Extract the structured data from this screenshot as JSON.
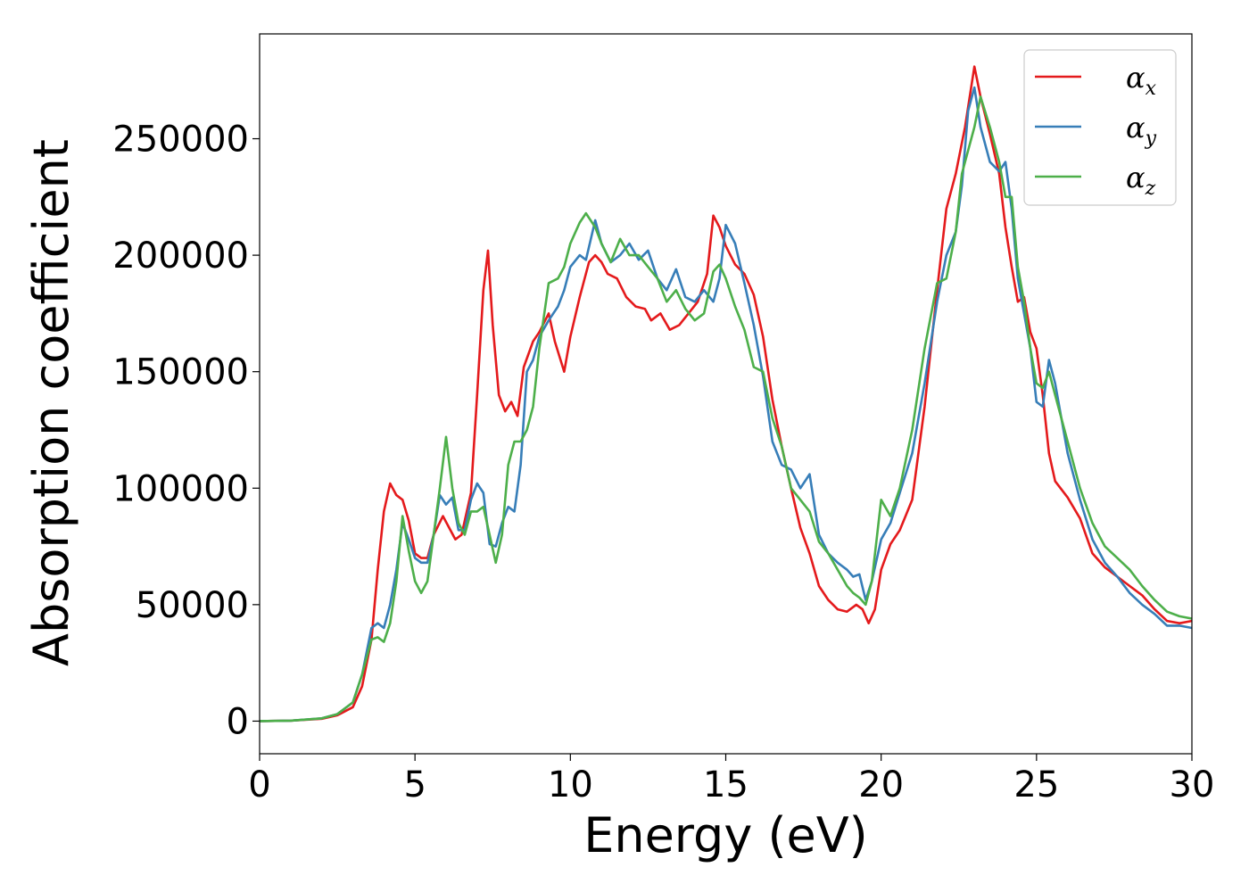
{
  "chart_data": {
    "type": "line",
    "title": "",
    "xlabel": "Energy (eV)",
    "ylabel": "Absorption coefficient",
    "xlim": [
      0,
      30
    ],
    "ylim": [
      -14000,
      295000
    ],
    "xticks": [
      0,
      5,
      10,
      15,
      20,
      25,
      30
    ],
    "yticks": [
      0,
      50000,
      100000,
      150000,
      200000,
      250000
    ],
    "grid": false,
    "legend_position": "top-right",
    "series": [
      {
        "name": "αx",
        "symbol": "α",
        "subscript": "x",
        "color": "#e41a1c",
        "x": [
          0,
          1,
          2,
          2.5,
          3,
          3.3,
          3.6,
          3.8,
          4,
          4.2,
          4.4,
          4.6,
          4.8,
          5,
          5.2,
          5.4,
          5.6,
          5.9,
          6.1,
          6.3,
          6.5,
          6.8,
          7,
          7.2,
          7.35,
          7.5,
          7.7,
          7.9,
          8.1,
          8.3,
          8.5,
          8.8,
          9,
          9.3,
          9.5,
          9.8,
          10,
          10.3,
          10.6,
          10.8,
          11,
          11.2,
          11.5,
          11.8,
          12.1,
          12.4,
          12.6,
          12.9,
          13.2,
          13.5,
          13.8,
          14.1,
          14.4,
          14.6,
          14.8,
          15,
          15.3,
          15.6,
          15.9,
          16.2,
          16.5,
          16.8,
          17.1,
          17.4,
          17.7,
          18,
          18.3,
          18.6,
          18.9,
          19.2,
          19.4,
          19.6,
          19.8,
          20,
          20.3,
          20.6,
          21,
          21.4,
          21.8,
          22.1,
          22.4,
          22.7,
          23,
          23.2,
          23.5,
          23.8,
          24,
          24.2,
          24.4,
          24.6,
          24.8,
          25,
          25.2,
          25.4,
          25.6,
          26,
          26.4,
          26.8,
          27.2,
          27.6,
          28,
          28.4,
          28.8,
          29.2,
          29.6,
          30
        ],
        "y": [
          0,
          200,
          1000,
          2500,
          6000,
          15000,
          35000,
          65000,
          90000,
          102000,
          97000,
          95000,
          86000,
          72000,
          70000,
          70000,
          80000,
          88000,
          83000,
          78000,
          80000,
          98000,
          140000,
          185000,
          202000,
          170000,
          140000,
          133000,
          137000,
          131000,
          152000,
          163000,
          167000,
          175000,
          163000,
          150000,
          165000,
          182000,
          197000,
          200000,
          197000,
          192000,
          190000,
          182000,
          178000,
          177000,
          172000,
          175000,
          168000,
          170000,
          175000,
          180000,
          192000,
          217000,
          212000,
          204000,
          196000,
          192000,
          183000,
          165000,
          138000,
          118000,
          100000,
          83000,
          72000,
          58000,
          52000,
          48000,
          47000,
          50000,
          48000,
          42000,
          48000,
          65000,
          76000,
          82000,
          95000,
          135000,
          185000,
          220000,
          235000,
          255000,
          281000,
          268000,
          252000,
          235000,
          212000,
          195000,
          180000,
          182000,
          167000,
          160000,
          140000,
          115000,
          103000,
          96000,
          87000,
          72000,
          66000,
          62000,
          58000,
          54000,
          48000,
          43000,
          42000,
          43000
        ]
      },
      {
        "name": "αy",
        "symbol": "α",
        "subscript": "y",
        "color": "#377eb8",
        "x": [
          0,
          1,
          2,
          2.5,
          3,
          3.3,
          3.6,
          3.8,
          4,
          4.2,
          4.4,
          4.6,
          4.8,
          5,
          5.2,
          5.4,
          5.6,
          5.8,
          6,
          6.2,
          6.4,
          6.6,
          6.8,
          7,
          7.2,
          7.4,
          7.6,
          7.8,
          8,
          8.2,
          8.4,
          8.6,
          8.8,
          9,
          9.3,
          9.6,
          9.8,
          10,
          10.3,
          10.5,
          10.8,
          11,
          11.3,
          11.6,
          11.9,
          12.2,
          12.5,
          12.8,
          13.1,
          13.4,
          13.7,
          14,
          14.3,
          14.6,
          14.8,
          15,
          15.3,
          15.6,
          15.9,
          16.2,
          16.5,
          16.8,
          17.1,
          17.4,
          17.7,
          18,
          18.3,
          18.6,
          18.9,
          19.1,
          19.3,
          19.5,
          19.7,
          20,
          20.3,
          20.6,
          21,
          21.4,
          21.8,
          22.1,
          22.4,
          22.6,
          22.8,
          23,
          23.2,
          23.5,
          23.8,
          24,
          24.2,
          24.4,
          24.6,
          24.8,
          25,
          25.2,
          25.4,
          25.6,
          26,
          26.4,
          26.8,
          27.2,
          27.6,
          28,
          28.4,
          28.8,
          29.2,
          29.6,
          30
        ],
        "y": [
          0,
          200,
          1200,
          3000,
          8000,
          20000,
          40000,
          42000,
          40000,
          50000,
          65000,
          85000,
          78000,
          70000,
          68000,
          68000,
          80000,
          97000,
          93000,
          96000,
          82000,
          82000,
          95000,
          102000,
          98000,
          76000,
          75000,
          85000,
          92000,
          90000,
          110000,
          150000,
          155000,
          165000,
          172000,
          178000,
          185000,
          195000,
          200000,
          198000,
          215000,
          205000,
          197000,
          200000,
          205000,
          198000,
          202000,
          190000,
          185000,
          194000,
          182000,
          180000,
          185000,
          180000,
          190000,
          213000,
          205000,
          188000,
          170000,
          148000,
          120000,
          110000,
          108000,
          100000,
          106000,
          80000,
          72000,
          68000,
          65000,
          62000,
          63000,
          52000,
          60000,
          78000,
          85000,
          98000,
          115000,
          145000,
          180000,
          200000,
          210000,
          230000,
          262000,
          272000,
          255000,
          240000,
          236000,
          240000,
          220000,
          190000,
          175000,
          160000,
          137000,
          135000,
          155000,
          145000,
          115000,
          95000,
          78000,
          68000,
          62000,
          55000,
          50000,
          46000,
          41000,
          41000,
          40000
        ]
      },
      {
        "name": "αz",
        "symbol": "α",
        "subscript": "z",
        "color": "#4daf4a",
        "x": [
          0,
          1,
          2,
          2.5,
          3,
          3.3,
          3.6,
          3.8,
          4,
          4.2,
          4.4,
          4.6,
          4.8,
          5,
          5.2,
          5.4,
          5.6,
          5.8,
          6,
          6.2,
          6.4,
          6.6,
          6.8,
          7,
          7.2,
          7.4,
          7.6,
          7.8,
          8,
          8.2,
          8.4,
          8.6,
          8.8,
          9,
          9.3,
          9.6,
          9.8,
          10,
          10.3,
          10.5,
          10.8,
          11,
          11.3,
          11.6,
          11.9,
          12.2,
          12.5,
          12.8,
          13.1,
          13.4,
          13.7,
          14,
          14.3,
          14.6,
          14.8,
          15,
          15.3,
          15.6,
          15.9,
          16.2,
          16.5,
          16.8,
          17.1,
          17.4,
          17.7,
          18,
          18.3,
          18.6,
          18.9,
          19.1,
          19.3,
          19.5,
          19.7,
          20,
          20.3,
          20.6,
          21,
          21.4,
          21.8,
          22.1,
          22.4,
          22.6,
          22.8,
          23,
          23.2,
          23.5,
          23.8,
          24,
          24.2,
          24.4,
          24.6,
          24.8,
          25,
          25.2,
          25.4,
          25.6,
          26,
          26.4,
          26.8,
          27.2,
          27.6,
          28,
          28.4,
          28.8,
          29.2,
          29.6,
          30
        ],
        "y": [
          0,
          200,
          1200,
          3000,
          8000,
          20000,
          35000,
          36000,
          34000,
          42000,
          60000,
          88000,
          73000,
          60000,
          55000,
          60000,
          80000,
          100000,
          122000,
          100000,
          85000,
          80000,
          90000,
          90000,
          92000,
          80000,
          68000,
          80000,
          110000,
          120000,
          120000,
          125000,
          135000,
          160000,
          188000,
          190000,
          195000,
          205000,
          214000,
          218000,
          212000,
          205000,
          197000,
          207000,
          200000,
          200000,
          195000,
          190000,
          180000,
          185000,
          177000,
          172000,
          175000,
          193000,
          196000,
          190000,
          178000,
          168000,
          152000,
          150000,
          130000,
          118000,
          100000,
          95000,
          90000,
          77000,
          72000,
          65000,
          58000,
          55000,
          53000,
          50000,
          60000,
          95000,
          88000,
          100000,
          125000,
          160000,
          188000,
          190000,
          210000,
          235000,
          245000,
          255000,
          268000,
          255000,
          240000,
          225000,
          225000,
          195000,
          180000,
          160000,
          145000,
          143000,
          150000,
          140000,
          120000,
          100000,
          85000,
          75000,
          70000,
          65000,
          58000,
          52000,
          47000,
          45000,
          44000
        ]
      }
    ]
  }
}
